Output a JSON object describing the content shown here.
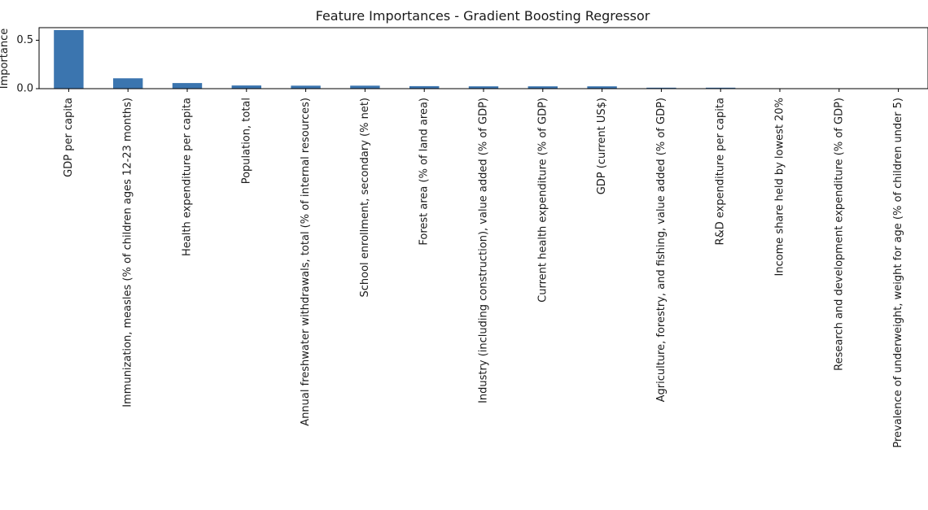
{
  "chart_data": {
    "type": "bar",
    "title": "Feature Importances - Gradient Boosting Regressor",
    "xlabel": "",
    "ylabel": "Importance",
    "ylim": [
      0,
      0.63
    ],
    "yticks": [
      {
        "value": 0.0,
        "label": "0.0"
      },
      {
        "value": 0.5,
        "label": "0.5"
      }
    ],
    "grid": false,
    "categories": [
      "GDP per capita",
      "Immunization, measles (% of children ages 12-23 months)",
      "Health expenditure per capita",
      "Population, total",
      "Annual freshwater withdrawals, total (% of internal resources)",
      "School enrollment, secondary (% net)",
      "Forest area (% of land area)",
      "Industry (including construction), value added (% of GDP)",
      "Current health expenditure (% of GDP)",
      "GDP (current US$)",
      "Agriculture, forestry, and fishing, value added (% of GDP)",
      "R&D expenditure per capita",
      "Income share held by lowest 20%",
      "Research and development expenditure (% of GDP)",
      "Prevalence of underweight, weight for age (% of children under 5)"
    ],
    "values": [
      0.605,
      0.107,
      0.058,
      0.033,
      0.031,
      0.031,
      0.026,
      0.024,
      0.024,
      0.024,
      0.01,
      0.01,
      0.002,
      0.001,
      0.001
    ],
    "bar_color": "#3b75af"
  }
}
